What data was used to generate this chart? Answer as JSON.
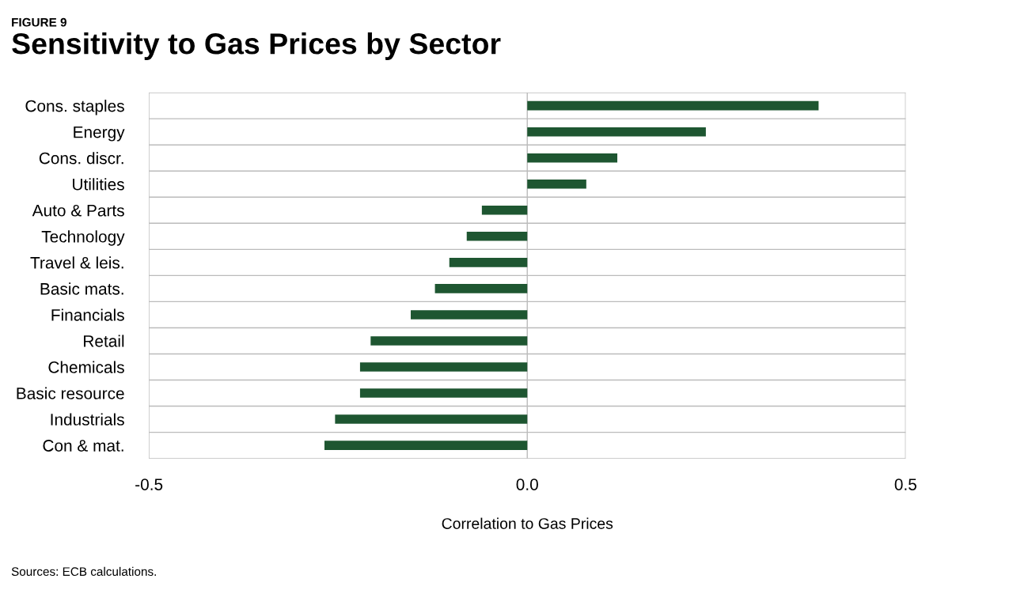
{
  "chart_data": {
    "type": "bar",
    "orientation": "horizontal",
    "title": "Sensitivity to Gas Prices by Sector",
    "subtitle": "FIGURE 9",
    "categories": [
      "Cons. staples",
      "Energy",
      "Cons. discr.",
      "Utilities",
      "Auto & Parts",
      "Technology",
      "Travel & leis.",
      "Basic mats.",
      "Financials",
      "Retail",
      "Chemicals",
      "Basic resource",
      "Industrials",
      "Con & mat."
    ],
    "values": [
      0.385,
      0.236,
      0.119,
      0.078,
      -0.06,
      -0.08,
      -0.103,
      -0.122,
      -0.154,
      -0.207,
      -0.221,
      -0.221,
      -0.254,
      -0.268
    ],
    "color": "#1e5631",
    "xlim": [
      -0.5,
      0.5
    ],
    "xticks": [
      -0.5,
      {
        "value": 0,
        "label": "0.0"
      },
      0.5
    ],
    "xlabel": "Correlation to Gas Prices",
    "grid": true,
    "annotations": [
      "Sources: ECB calculations."
    ]
  }
}
